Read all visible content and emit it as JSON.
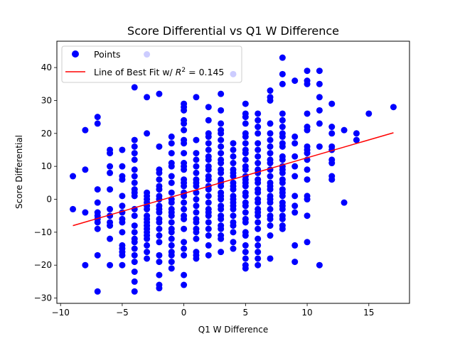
{
  "chart_data": {
    "type": "scatter",
    "title": "Score Differential vs Q1 W Difference",
    "xlabel": "Q1 W Difference",
    "ylabel": "Score Differential",
    "xlim": [
      -10.3,
      18.3
    ],
    "ylim": [
      -31.6,
      48.0
    ],
    "xticks": [
      -10,
      -5,
      0,
      5,
      10,
      15
    ],
    "yticks": [
      -30,
      -20,
      -10,
      0,
      10,
      20,
      30,
      40
    ],
    "grid": false,
    "legend_position": "top-left",
    "legend": {
      "points_label": "Points",
      "line_label_prefix": "Line of Best Fit w/ ",
      "line_label_r2": "R",
      "line_label_sup": "2",
      "line_label_suffix": " = 0.145"
    },
    "colors": {
      "points": "#0000ff",
      "line": "#ff0000"
    },
    "fit_line": {
      "x": [
        -9,
        17
      ],
      "y": [
        -8.0,
        20.2
      ]
    },
    "points": {
      "x": [
        -9,
        -9,
        -8,
        -8,
        -8,
        -8,
        -7,
        -7,
        -7,
        -7,
        -7,
        -7,
        -7,
        -7,
        -7,
        -7,
        -7,
        -6,
        -6,
        -6,
        -6,
        -6,
        -6,
        -6,
        -6,
        -6,
        -6,
        -6,
        -5,
        -5,
        -5,
        -5,
        -5,
        -5,
        -5,
        -5,
        -5,
        -5,
        -5,
        -5,
        -5,
        -5,
        -5,
        -4,
        -4,
        -4,
        -4,
        -4,
        -4,
        -4,
        -4,
        -4,
        -4,
        -4,
        -4,
        -4,
        -4,
        -4,
        -4,
        -4,
        -4,
        -4,
        -4,
        -4,
        -4,
        -4,
        -3,
        -3,
        -3,
        -3,
        -3,
        -3,
        -3,
        -3,
        -3,
        -3,
        -3,
        -3,
        -3,
        -3,
        -3,
        -3,
        -3,
        -3,
        -3,
        -3,
        -2,
        -2,
        -2,
        -2,
        -2,
        -2,
        -2,
        -2,
        -2,
        -2,
        -2,
        -2,
        -2,
        -2,
        -2,
        -2,
        -2,
        -2,
        -2,
        -2,
        -2,
        -2,
        -1,
        -1,
        -1,
        -1,
        -1,
        -1,
        -1,
        -1,
        -1,
        -1,
        -1,
        -1,
        -1,
        -1,
        -1,
        -1,
        -1,
        -1,
        -1,
        -1,
        -1,
        -1,
        0,
        0,
        0,
        0,
        0,
        0,
        0,
        0,
        0,
        0,
        0,
        0,
        0,
        0,
        0,
        0,
        0,
        0,
        0,
        0,
        0,
        0,
        0,
        0,
        0,
        0,
        0,
        1,
        1,
        1,
        1,
        1,
        1,
        1,
        1,
        1,
        1,
        1,
        1,
        1,
        1,
        1,
        1,
        1,
        1,
        1,
        1,
        1,
        2,
        2,
        2,
        2,
        2,
        2,
        2,
        2,
        2,
        2,
        2,
        2,
        2,
        2,
        2,
        2,
        2,
        2,
        2,
        2,
        2,
        2,
        2,
        2,
        3,
        3,
        3,
        3,
        3,
        3,
        3,
        3,
        3,
        3,
        3,
        3,
        3,
        3,
        3,
        3,
        3,
        3,
        3,
        3,
        3,
        3,
        3,
        3,
        3,
        3,
        3,
        4,
        4,
        4,
        4,
        4,
        4,
        4,
        4,
        4,
        4,
        4,
        4,
        4,
        4,
        4,
        4,
        4,
        4,
        4,
        4,
        4,
        4,
        5,
        5,
        5,
        5,
        5,
        5,
        5,
        5,
        5,
        5,
        5,
        5,
        5,
        5,
        5,
        5,
        5,
        5,
        5,
        5,
        5,
        5,
        5,
        5,
        5,
        5,
        5,
        5,
        5,
        5,
        6,
        6,
        6,
        6,
        6,
        6,
        6,
        6,
        6,
        6,
        6,
        6,
        6,
        6,
        6,
        6,
        6,
        6,
        6,
        6,
        6,
        6,
        6,
        6,
        6,
        6,
        7,
        7,
        7,
        7,
        7,
        7,
        7,
        7,
        7,
        7,
        7,
        7,
        7,
        7,
        7,
        7,
        7,
        7,
        7,
        7,
        7,
        7,
        7,
        7,
        8,
        8,
        8,
        8,
        8,
        8,
        8,
        8,
        8,
        8,
        8,
        8,
        8,
        8,
        8,
        8,
        8,
        8,
        8,
        8,
        8,
        8,
        8,
        8,
        8,
        8,
        8,
        9,
        9,
        9,
        9,
        9,
        9,
        9,
        9,
        9,
        9,
        9,
        10,
        10,
        10,
        10,
        10,
        10,
        10,
        10,
        10,
        10,
        10,
        10,
        10,
        10,
        10,
        10,
        11,
        11,
        11,
        11,
        11,
        11,
        11,
        12,
        12,
        12,
        12,
        12,
        12,
        12,
        12,
        12,
        13,
        13,
        14,
        14,
        15,
        17
      ],
      "y": [
        7,
        -3,
        21,
        9,
        -4,
        -20,
        25,
        23,
        3,
        -1,
        -4,
        -5,
        -6,
        -7,
        -9,
        -17,
        -28,
        15,
        14,
        10,
        8,
        3,
        -3,
        -5,
        -7,
        -8,
        -12,
        -20,
        15,
        10,
        7,
        6,
        1,
        -2,
        -4,
        -6,
        -7,
        -10,
        -14,
        -15,
        -16,
        -17,
        -20,
        34,
        18,
        16,
        14,
        12,
        9,
        7,
        5,
        3,
        2,
        -3,
        -5,
        -8,
        -10,
        -12,
        -13,
        -15,
        -17,
        -19,
        -22,
        -25,
        -28,
        1,
        44,
        31,
        20,
        2,
        1,
        0,
        -1,
        -2,
        -3,
        -5,
        -6,
        -7,
        -8,
        -9,
        -10,
        -11,
        -12,
        -14,
        -16,
        -18,
        32,
        16,
        9,
        8,
        6,
        4,
        3,
        1,
        0,
        -2,
        -3,
        -4,
        -6,
        -7,
        -9,
        -11,
        -13,
        -17,
        -19,
        -23,
        -26,
        -27,
        19,
        17,
        14,
        11,
        10,
        7,
        5,
        2,
        0,
        -1,
        -3,
        -4,
        -5,
        -7,
        -9,
        -10,
        -12,
        -14,
        -16,
        -17,
        -19,
        -21,
        29,
        28,
        27,
        24,
        23,
        21,
        18,
        17,
        14,
        11,
        10,
        9,
        6,
        5,
        4,
        2,
        1,
        -1,
        -3,
        -5,
        -6,
        -9,
        -13,
        -15,
        -17,
        -23,
        -26,
        31,
        18,
        14,
        12,
        10,
        8,
        6,
        5,
        4,
        2,
        0,
        -2,
        -4,
        -6,
        -7,
        -9,
        -10,
        -12,
        -16,
        -17,
        -18,
        28,
        24,
        20,
        19,
        17,
        15,
        13,
        12,
        10,
        9,
        7,
        6,
        4,
        3,
        1,
        -1,
        -3,
        -4,
        -5,
        -7,
        -9,
        -11,
        -14,
        -17,
        32,
        27,
        23,
        21,
        20,
        18,
        16,
        14,
        12,
        11,
        9,
        8,
        6,
        5,
        4,
        2,
        1,
        0,
        -2,
        -3,
        -5,
        -6,
        -8,
        -9,
        -11,
        -12,
        -16,
        38,
        17,
        15,
        13,
        11,
        9,
        8,
        7,
        5,
        4,
        3,
        1,
        0,
        -1,
        -2,
        -3,
        -5,
        -7,
        -8,
        -10,
        -13,
        -15,
        29,
        26,
        25,
        23,
        20,
        19,
        17,
        15,
        14,
        12,
        10,
        9,
        7,
        6,
        5,
        4,
        2,
        1,
        -1,
        -2,
        -4,
        -6,
        -7,
        -10,
        -11,
        -14,
        -16,
        -18,
        -20,
        -21,
        26,
        24,
        22,
        20,
        17,
        15,
        13,
        11,
        9,
        8,
        6,
        5,
        3,
        2,
        0,
        -1,
        -3,
        -4,
        -5,
        -7,
        -9,
        -12,
        -14,
        -16,
        -18,
        -20,
        33,
        31,
        30,
        23,
        20,
        18,
        16,
        14,
        12,
        11,
        9,
        7,
        5,
        4,
        3,
        1,
        0,
        -1,
        -3,
        -5,
        -6,
        -8,
        -11,
        -18,
        43,
        38,
        35,
        26,
        24,
        22,
        20,
        19,
        17,
        16,
        13,
        12,
        10,
        9,
        8,
        6,
        5,
        3,
        2,
        1,
        -1,
        -2,
        -3,
        -5,
        -6,
        -8,
        -9,
        36,
        19,
        17,
        13,
        10,
        7,
        1,
        -2,
        -4,
        -14,
        -19,
        39,
        36,
        35,
        26,
        22,
        21,
        16,
        15,
        14,
        12,
        9,
        6,
        1,
        0,
        -5,
        -13,
        39,
        35,
        31,
        27,
        23,
        16,
        -20,
        29,
        22,
        20,
        16,
        15,
        12,
        11,
        7,
        6,
        21,
        -1,
        20,
        18,
        26,
        28
      ]
    }
  }
}
